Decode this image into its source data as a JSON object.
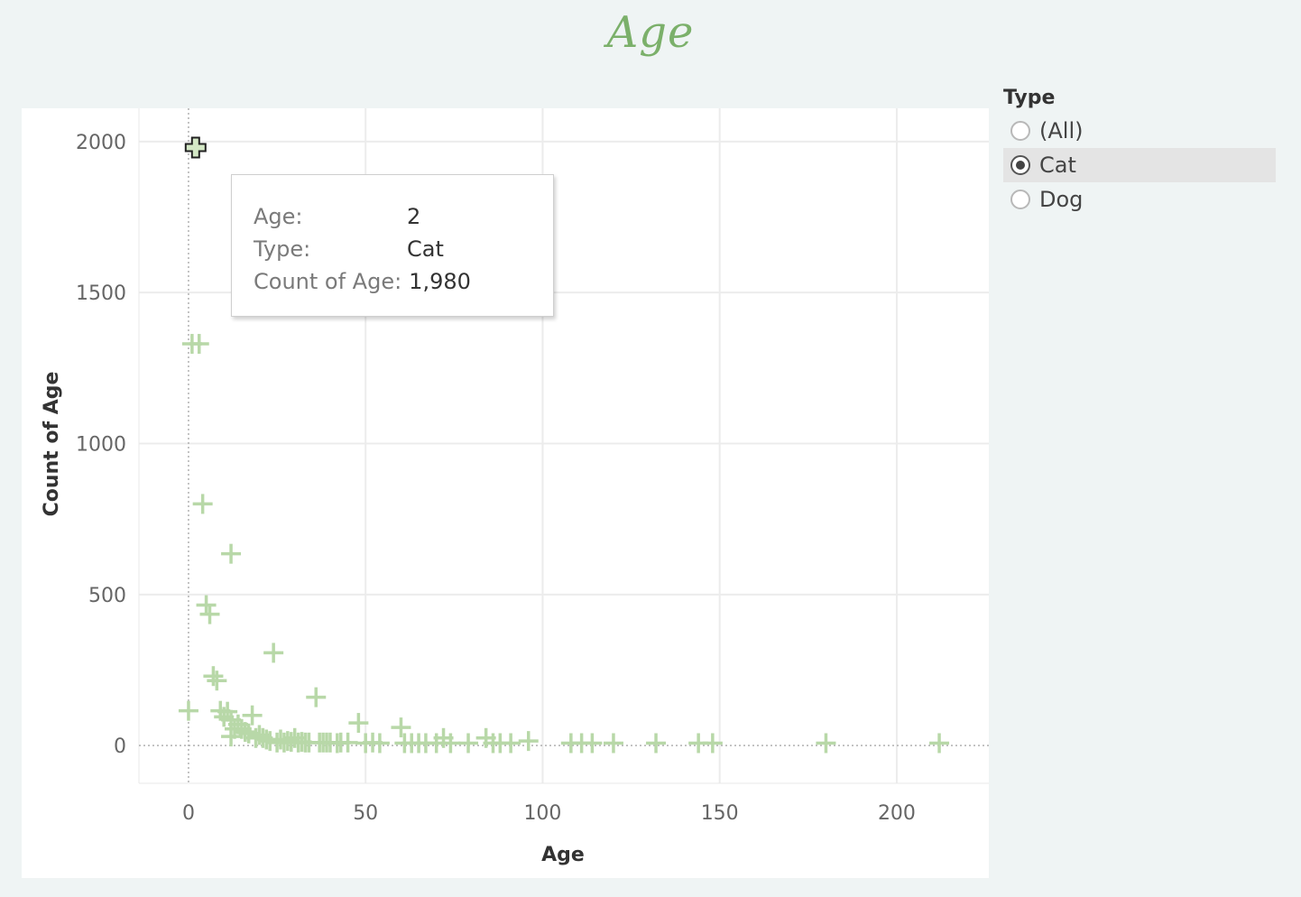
{
  "title": "Age",
  "legend": {
    "title": "Type",
    "options": [
      {
        "label": "(All)",
        "selected": false
      },
      {
        "label": "Cat",
        "selected": true
      },
      {
        "label": "Dog",
        "selected": false
      }
    ]
  },
  "tooltip": {
    "age_label": "Age:",
    "age_value": "2",
    "type_label": "Type:",
    "type_value": "Cat",
    "count_label": "Count of Age:",
    "count_value": "1,980"
  },
  "colors": {
    "marker": "#b8d8a8",
    "highlight_marker_fill": "#d4e8c6",
    "title": "#7bb06a",
    "gridline": "#ececec"
  },
  "chart_data": {
    "type": "scatter",
    "marker": "cross",
    "title": "Age",
    "xlabel": "Age",
    "ylabel": "Count of Age",
    "xlim": [
      -14,
      226
    ],
    "ylim": [
      -125,
      2110
    ],
    "xticks": [
      0,
      50,
      100,
      150,
      200
    ],
    "yticks": [
      0,
      500,
      1000,
      1500,
      2000
    ],
    "grid": true,
    "highlighted_point": {
      "x": 2,
      "y": 1980
    },
    "series": [
      {
        "points": [
          [
            2,
            1980
          ],
          [
            1,
            1330
          ],
          [
            3,
            1330
          ],
          [
            4,
            800
          ],
          [
            12,
            635
          ],
          [
            5,
            465
          ],
          [
            6,
            435
          ],
          [
            24,
            307
          ],
          [
            7,
            230
          ],
          [
            8,
            215
          ],
          [
            36,
            160
          ],
          [
            0,
            115
          ],
          [
            9,
            115
          ],
          [
            11,
            112
          ],
          [
            10,
            95
          ],
          [
            18,
            100
          ],
          [
            12,
            85
          ],
          [
            14,
            70
          ],
          [
            48,
            75
          ],
          [
            60,
            60
          ],
          [
            13,
            55
          ],
          [
            15,
            55
          ],
          [
            16,
            45
          ],
          [
            17,
            40
          ],
          [
            12,
            30
          ],
          [
            20,
            35
          ],
          [
            19,
            25
          ],
          [
            21,
            25
          ],
          [
            22,
            20
          ],
          [
            26,
            20
          ],
          [
            30,
            25
          ],
          [
            72,
            25
          ],
          [
            84,
            25
          ],
          [
            96,
            15
          ],
          [
            23,
            15
          ],
          [
            25,
            10
          ],
          [
            27,
            10
          ],
          [
            28,
            15
          ],
          [
            29,
            12
          ],
          [
            31,
            10
          ],
          [
            32,
            12
          ],
          [
            33,
            10
          ],
          [
            34,
            10
          ],
          [
            37,
            10
          ],
          [
            38,
            10
          ],
          [
            39,
            10
          ],
          [
            40,
            10
          ],
          [
            42,
            8
          ],
          [
            43,
            10
          ],
          [
            45,
            10
          ],
          [
            50,
            8
          ],
          [
            52,
            10
          ],
          [
            54,
            8
          ],
          [
            61,
            8
          ],
          [
            63,
            8
          ],
          [
            65,
            8
          ],
          [
            67,
            8
          ],
          [
            70,
            8
          ],
          [
            74,
            8
          ],
          [
            79,
            8
          ],
          [
            86,
            8
          ],
          [
            88,
            8
          ],
          [
            91,
            8
          ],
          [
            108,
            8
          ],
          [
            111,
            8
          ],
          [
            114,
            8
          ],
          [
            120,
            8
          ],
          [
            132,
            8
          ],
          [
            144,
            8
          ],
          [
            148,
            8
          ],
          [
            180,
            8
          ],
          [
            212,
            8
          ]
        ]
      }
    ]
  }
}
